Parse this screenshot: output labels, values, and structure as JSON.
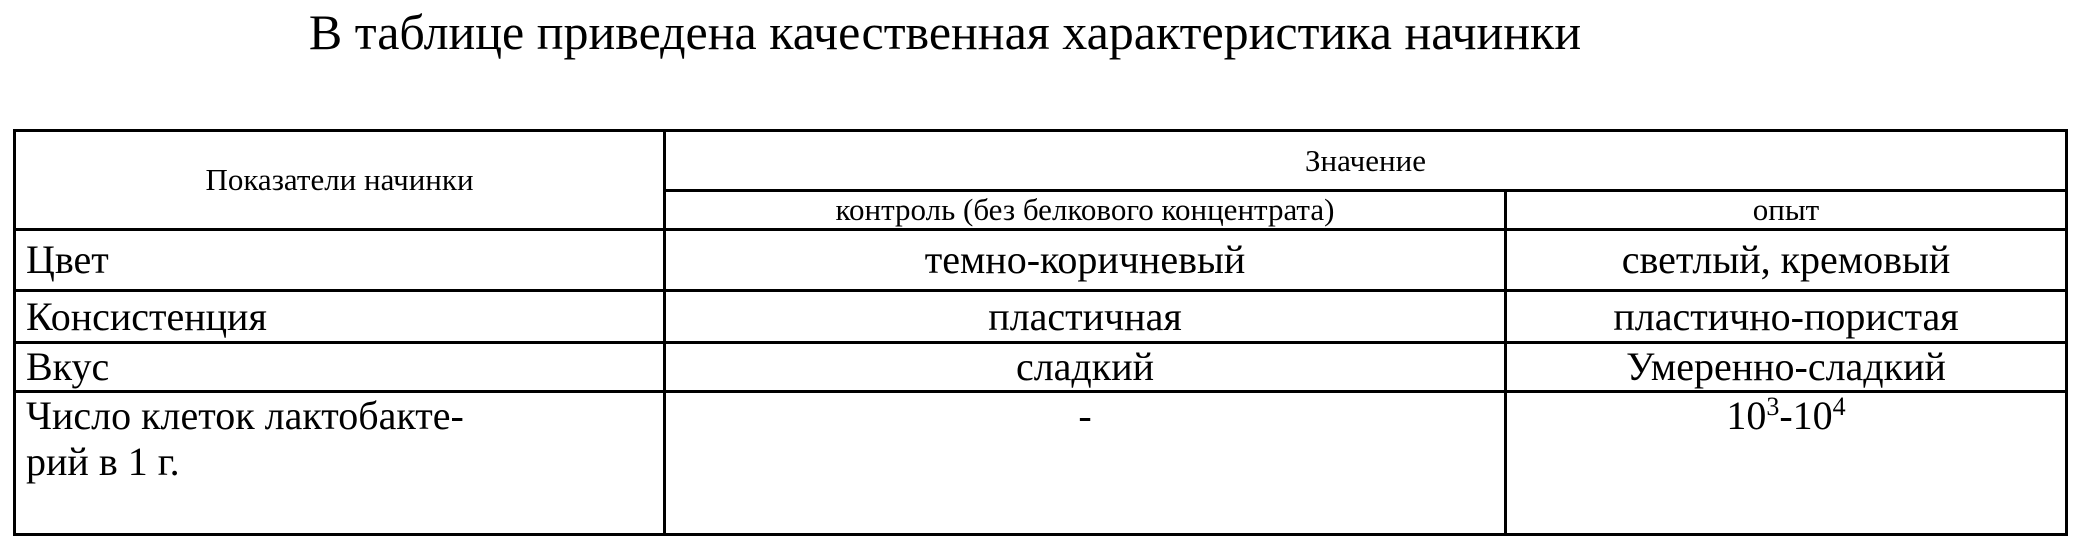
{
  "title": "В таблице приведена качественная характеристика начинки",
  "table": {
    "header": {
      "indicator": "Показатели начинки",
      "value": "Значение",
      "control": "контроль (без белкового концентрата)",
      "experiment": "опыт"
    },
    "rows": [
      {
        "indicator": "Цвет",
        "control": "темно-коричневый",
        "experiment": "светлый, кремовый"
      },
      {
        "indicator": "Консистенция",
        "control": "пластичная",
        "experiment": "пластично-пористая"
      },
      {
        "indicator": "Вкус",
        "control": "сладкий",
        "experiment": "Умеренно-сладкий"
      },
      {
        "indicator_line1": "Число клеток лактобакте-",
        "indicator_line2": "рий в 1 г.",
        "control": "-",
        "experiment": {
          "base1": "10",
          "exp1": "3",
          "sep": "-",
          "base2": "10",
          "exp2": "4"
        }
      }
    ]
  }
}
